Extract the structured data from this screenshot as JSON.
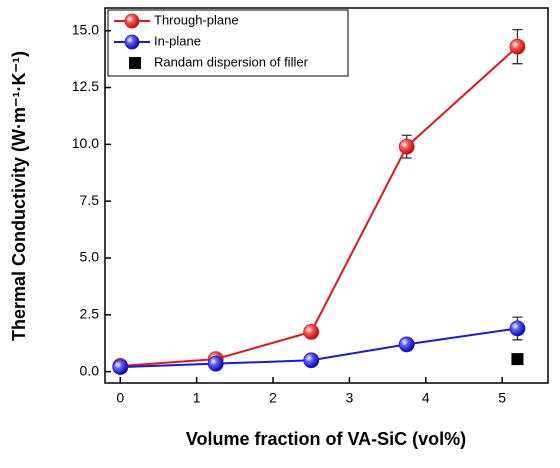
{
  "chart_data": {
    "type": "line",
    "xlabel": "Volume fraction of VA-SiC (vol%)",
    "ylabel": "Thermal Conductivity (W·m⁻¹·K⁻¹)",
    "x": [
      0,
      1.25,
      2.5,
      3.75,
      5.2
    ],
    "series": [
      {
        "name": "Through-plane",
        "color": "#e8141b",
        "marker": "circle",
        "values": [
          0.25,
          0.55,
          1.75,
          9.9,
          14.3
        ],
        "errors": [
          0.1,
          0.1,
          0.15,
          0.5,
          0.75
        ]
      },
      {
        "name": "In-plane",
        "color": "#1818e0",
        "marker": "circle",
        "values": [
          0.2,
          0.35,
          0.5,
          1.2,
          1.9
        ],
        "errors": [
          0.05,
          0.1,
          0.1,
          0.15,
          0.5
        ]
      },
      {
        "name": "Randam dispersion of filler",
        "color": "#000000",
        "marker": "square",
        "x": [
          5.2
        ],
        "values": [
          0.55
        ]
      }
    ],
    "xlim": [
      -0.2,
      5.6
    ],
    "ylim": [
      -0.5,
      16
    ],
    "xticks": [
      0,
      1,
      2,
      3,
      4,
      5
    ],
    "yticks": [
      {
        "value": 0,
        "label": "0.0"
      },
      {
        "value": 2.5,
        "label": "2.5"
      },
      {
        "value": 5,
        "label": "5.0"
      },
      {
        "value": 7.5,
        "label": "7.5"
      },
      {
        "value": 10,
        "label": "10.0"
      },
      {
        "value": 12.5,
        "label": "12.5"
      },
      {
        "value": 15,
        "label": "15.0"
      }
    ],
    "legend": "upper-left"
  }
}
